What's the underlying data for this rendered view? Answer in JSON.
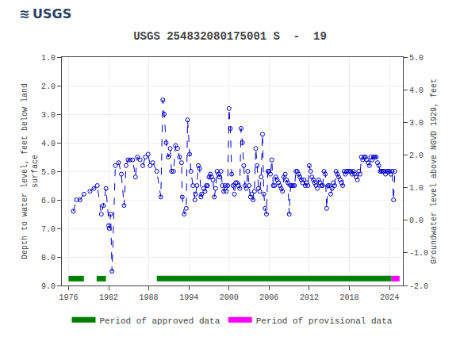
{
  "chart_data": {
    "type": "line",
    "title": "USGS 254832080175001 S  -  19",
    "annotations": [
      "≋",
      "USGS"
    ],
    "y_label": "Depth to water level, feet below land\nsurface",
    "y2_label": "Groundwater level above NGVD 1929, feet",
    "xlim": [
      1975,
      2026
    ],
    "xticks": [
      1976,
      1982,
      1988,
      1994,
      2000,
      2006,
      2012,
      2018,
      2024
    ],
    "ylim": [
      9.0,
      1.0
    ],
    "yticks": [
      {
        "value": 1.0,
        "label": "1.0"
      },
      {
        "value": 2.0,
        "label": "2.0"
      },
      {
        "value": 3.0,
        "label": "3.0"
      },
      {
        "value": 4.0,
        "label": "4.0"
      },
      {
        "value": 5.0,
        "label": "5.0"
      },
      {
        "value": 6.0,
        "label": "6.0"
      },
      {
        "value": 7.0,
        "label": "7.0"
      },
      {
        "value": 8.0,
        "label": "8.0"
      },
      {
        "value": 9.0,
        "label": "9.0"
      }
    ],
    "y2lim": [
      -2.0,
      5.0
    ],
    "y2ticks": [
      {
        "value": 5.0,
        "label": "5.0"
      },
      {
        "value": 4.0,
        "label": "4.0"
      },
      {
        "value": 3.0,
        "label": "3.0"
      },
      {
        "value": 2.0,
        "label": "2.0"
      },
      {
        "value": 1.0,
        "label": "1.0"
      },
      {
        "value": 0.0,
        "label": "0.0"
      },
      {
        "value": -1.0,
        "label": "-1.0"
      },
      {
        "value": -2.0,
        "label": "-2.0"
      }
    ],
    "grid": true,
    "legend": "bottom",
    "x": [
      1976.7,
      1977.2,
      1977.7,
      1978.3,
      1979.2,
      1979.8,
      1980.3,
      1980.9,
      1981.2,
      1981.6,
      1982.0,
      1982.1,
      1982.3,
      1982.5,
      1983.0,
      1983.5,
      1983.9,
      1984.3,
      1984.6,
      1984.9,
      1985.2,
      1985.6,
      1986.0,
      1986.3,
      1986.7,
      1987.1,
      1987.5,
      1987.9,
      1988.2,
      1988.6,
      1989.2,
      1989.8,
      1990.1,
      1990.3,
      1990.6,
      1990.9,
      1991.2,
      1991.4,
      1991.7,
      1992.0,
      1992.3,
      1992.6,
      1992.9,
      1993.0,
      1993.3,
      1993.6,
      1993.8,
      1994.1,
      1994.3,
      1994.6,
      1994.9,
      1995.0,
      1995.2,
      1995.4,
      1995.6,
      1995.8,
      1995.9,
      1996.2,
      1996.4,
      1996.6,
      1996.8,
      1997.0,
      1997.2,
      1997.4,
      1997.6,
      1997.8,
      1998.0,
      1998.2,
      1998.4,
      1998.6,
      1998.8,
      1999.0,
      1999.2,
      1999.4,
      1999.6,
      1999.8,
      2000.0,
      2000.2,
      2000.4,
      2000.6,
      2000.8,
      2001.0,
      2001.2,
      2001.4,
      2001.6,
      2001.8,
      2002.0,
      2002.2,
      2002.4,
      2002.6,
      2002.8,
      2003.0,
      2003.2,
      2003.4,
      2003.6,
      2003.8,
      2004.0,
      2004.2,
      2004.4,
      2004.6,
      2004.8,
      2005.0,
      2005.2,
      2005.4,
      2005.6,
      2005.8,
      2006.0,
      2006.2,
      2006.4,
      2006.6,
      2006.8,
      2007.0,
      2007.2,
      2007.4,
      2007.6,
      2007.8,
      2008.0,
      2008.2,
      2008.4,
      2008.6,
      2008.8,
      2009.0,
      2009.2,
      2009.4,
      2009.6,
      2009.8,
      2010.0,
      2010.2,
      2010.4,
      2010.6,
      2010.8,
      2011.0,
      2011.2,
      2011.4,
      2011.6,
      2011.8,
      2012.0,
      2012.2,
      2012.4,
      2012.6,
      2012.8,
      2013.0,
      2013.2,
      2013.4,
      2013.6,
      2013.8,
      2014.0,
      2014.2,
      2014.4,
      2014.6,
      2014.8,
      2015.0,
      2015.2,
      2015.4,
      2015.6,
      2015.8,
      2016.0,
      2016.2,
      2016.4,
      2016.6,
      2016.8,
      2017.0,
      2017.2,
      2017.4,
      2017.6,
      2017.8,
      2018.0,
      2018.2,
      2018.4,
      2018.6,
      2018.8,
      2019.0,
      2019.2,
      2019.4,
      2019.6,
      2019.8,
      2020.0,
      2020.2,
      2020.4,
      2020.6,
      2020.8,
      2021.0,
      2021.2,
      2021.4,
      2021.6,
      2021.8,
      2022.0,
      2022.2,
      2022.4,
      2022.6,
      2022.8,
      2023.0,
      2023.2,
      2023.4,
      2023.6,
      2023.8,
      2024.0,
      2024.2,
      2024.4,
      2024.6,
      2024.8
    ],
    "series": [
      {
        "type": "line",
        "color": "#0000CC",
        "marker": "open_circle",
        "line_style": "dashed",
        "values": [
          6.4,
          6.0,
          6.0,
          5.8,
          5.7,
          5.6,
          5.5,
          6.5,
          6.2,
          5.6,
          6.9,
          7.0,
          6.5,
          8.5,
          4.8,
          4.7,
          5.1,
          6.2,
          4.8,
          4.6,
          4.6,
          4.6,
          5.2,
          4.5,
          4.6,
          4.8,
          4.5,
          4.4,
          4.8,
          4.7,
          5.0,
          5.9,
          2.5,
          3.0,
          4.0,
          4.5,
          4.2,
          5.0,
          5.0,
          4.1,
          4.2,
          4.5,
          4.7,
          5.9,
          6.5,
          6.3,
          3.2,
          4.4,
          5.0,
          5.5,
          6.0,
          5.8,
          5.5,
          4.8,
          4.9,
          5.9,
          5.8,
          5.6,
          5.7,
          5.5,
          5.5,
          5.2,
          5.1,
          5.2,
          5.3,
          5.9,
          5.6,
          5.0,
          5.1,
          5.2,
          5.0,
          5.5,
          5.7,
          5.5,
          5.7,
          5.5,
          2.8,
          3.5,
          5.1,
          5.5,
          5.8,
          5.4,
          5.4,
          5.5,
          5.6,
          3.5,
          4.0,
          4.8,
          5.5,
          5.6,
          5.0,
          5.5,
          5.9,
          5.8,
          6.0,
          5.7,
          4.2,
          4.8,
          5.6,
          5.7,
          5.2,
          3.7,
          5.8,
          6.3,
          6.5,
          5.0,
          5.0,
          5.1,
          4.6,
          5.5,
          5.5,
          5.2,
          5.3,
          5.4,
          5.5,
          5.6,
          5.7,
          5.2,
          5.1,
          5.3,
          5.4,
          6.5,
          5.5,
          5.5,
          5.5,
          5.5,
          5.0,
          5.0,
          5.1,
          5.2,
          5.3,
          5.4,
          5.3,
          5.5,
          5.4,
          5.5,
          4.8,
          5.0,
          5.2,
          5.3,
          5.4,
          5.5,
          5.6,
          5.3,
          5.4,
          5.5,
          5.5,
          5.0,
          5.1,
          6.3,
          5.5,
          5.5,
          5.8,
          5.6,
          5.4,
          5.5,
          5.0,
          5.1,
          5.2,
          5.3,
          5.4,
          5.5,
          5.0,
          5.1,
          5.0,
          5.0,
          5.0,
          5.0,
          5.1,
          5.0,
          5.1,
          5.2,
          5.3,
          5.0,
          5.1,
          4.5,
          4.6,
          4.5,
          4.5,
          4.6,
          4.7,
          4.8,
          4.5,
          4.6,
          4.5,
          4.5,
          4.5,
          4.7,
          4.8,
          5.0,
          5.0,
          5.0,
          5.0,
          5.1,
          5.0,
          5.0,
          5.0,
          5.1,
          5.0,
          6.0,
          5.0
        ]
      },
      {
        "name": "Period of approved data",
        "type": "period",
        "color": "#008000",
        "segments": [
          [
            1976.0,
            1978.3
          ],
          [
            1980.2,
            1981.6
          ],
          [
            1989.2,
            2024.3
          ]
        ]
      },
      {
        "name": "Period of provisional data",
        "type": "period",
        "color": "#FF00FF",
        "segments": [
          [
            2024.3,
            2025.5
          ]
        ]
      }
    ]
  }
}
